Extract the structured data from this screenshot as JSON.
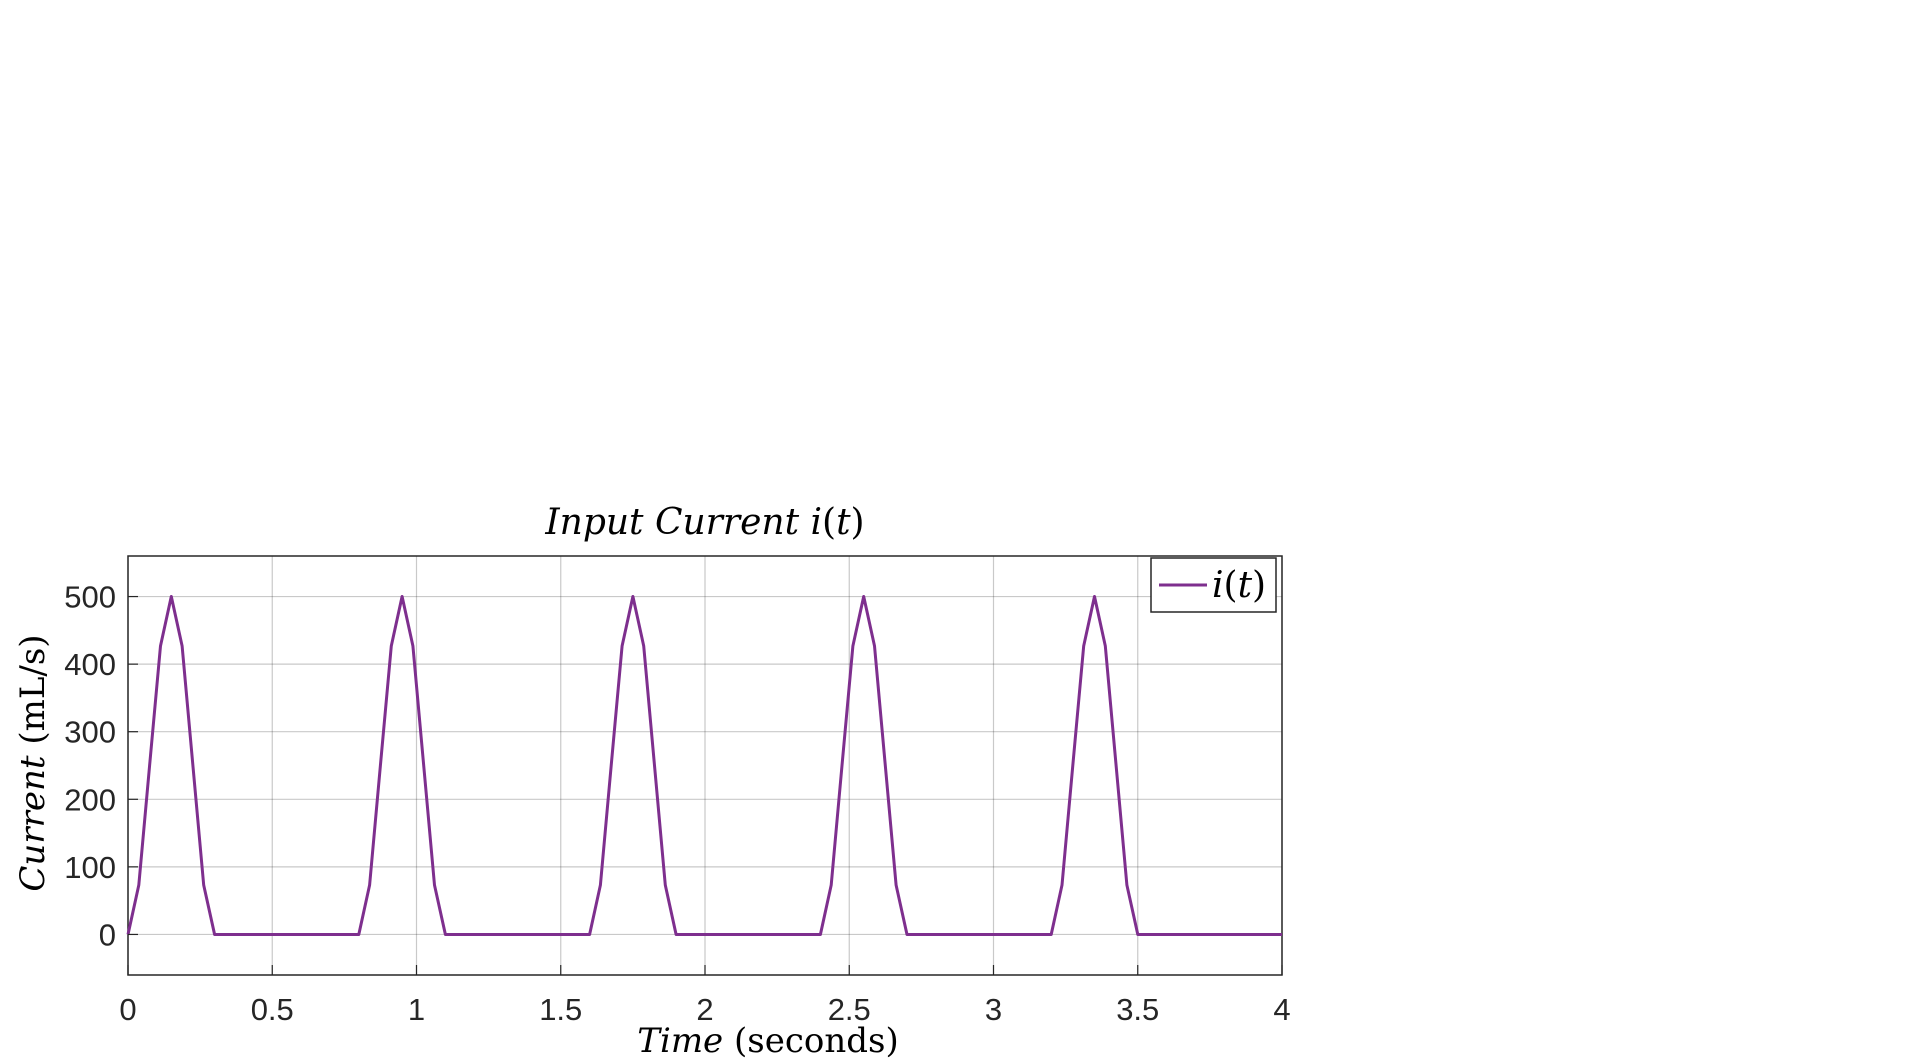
{
  "chart_data": {
    "type": "line",
    "title": {
      "italic": "Input Current ",
      "func": "i",
      "arg_open": "(",
      "arg": "t",
      "arg_close": ")"
    },
    "xlabel": {
      "italic": "Time",
      "units": " (seconds)"
    },
    "ylabel": {
      "italic": "Current",
      "units": " (mL/s)"
    },
    "xlim": [
      0,
      4
    ],
    "ylim": [
      -60,
      560
    ],
    "xticks": [
      0,
      0.5,
      1,
      1.5,
      2,
      2.5,
      3,
      3.5,
      4
    ],
    "xtick_labels": [
      "0",
      "0.5",
      "1",
      "1.5",
      "2",
      "2.5",
      "3",
      "3.5",
      "4"
    ],
    "yticks": [
      0,
      100,
      200,
      300,
      400,
      500
    ],
    "ytick_labels": [
      "0",
      "100",
      "200",
      "300",
      "400",
      "500"
    ],
    "grid": true,
    "legend_position": "top-right",
    "series": [
      {
        "name": {
          "func": "i",
          "arg_open": "(",
          "arg": "t",
          "arg_close": ")"
        },
        "color": "#7e2f8e",
        "x": [
          0,
          0.0375,
          0.075,
          0.1125,
          0.15,
          0.1875,
          0.225,
          0.2625,
          0.3,
          0.5,
          0.8,
          0.8375,
          0.875,
          0.9125,
          0.95,
          0.9875,
          1.025,
          1.0625,
          1.1,
          1.35,
          1.6,
          1.6375,
          1.675,
          1.7125,
          1.75,
          1.7875,
          1.825,
          1.8625,
          1.9,
          2.15,
          2.4,
          2.4375,
          2.475,
          2.5125,
          2.55,
          2.5875,
          2.625,
          2.6625,
          2.7,
          2.95,
          3.2,
          3.2375,
          3.275,
          3.3125,
          3.35,
          3.3875,
          3.425,
          3.4625,
          3.5,
          3.75,
          4.0
        ],
        "y": [
          0,
          73,
          250,
          427,
          500,
          427,
          250,
          73,
          0,
          0,
          0,
          73,
          250,
          427,
          500,
          427,
          250,
          73,
          0,
          0,
          0,
          73,
          250,
          427,
          500,
          427,
          250,
          73,
          0,
          0,
          0,
          73,
          250,
          427,
          500,
          427,
          250,
          73,
          0,
          0,
          0,
          73,
          250,
          427,
          500,
          427,
          250,
          73,
          0,
          0,
          0
        ]
      }
    ]
  }
}
